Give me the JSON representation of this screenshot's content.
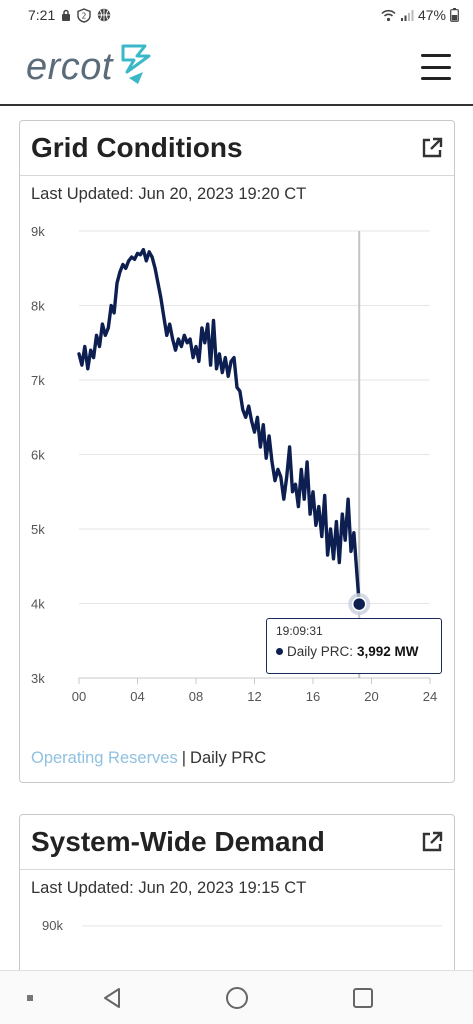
{
  "status_bar": {
    "time": "7:21",
    "battery": "47%"
  },
  "header": {
    "logo_text": "ercot",
    "menu_icon": "hamburger-menu-icon"
  },
  "grid_conditions": {
    "title": "Grid Conditions",
    "last_updated": "Last Updated: Jun 20, 2023 19:20 CT",
    "tooltip": {
      "time": "19:09:31",
      "series": "Daily PRC:",
      "value": "3,992 MW"
    },
    "legend": {
      "inactive": "Operating Reserves",
      "separator": "|",
      "active": "Daily PRC"
    }
  },
  "system_demand": {
    "title": "System-Wide Demand",
    "last_updated": "Last Updated: Jun 20, 2023 19:15 CT",
    "y_top_tick": "90k"
  },
  "chart_data": {
    "type": "line",
    "y_ticks": [
      "9k",
      "8k",
      "7k",
      "6k",
      "5k",
      "4k",
      "3k"
    ],
    "x_ticks": [
      "00",
      "04",
      "08",
      "12",
      "16",
      "20",
      "24"
    ],
    "ylim": [
      3000,
      9000
    ],
    "xlim": [
      0,
      24
    ],
    "crosshair_x": 19.16,
    "highlight": {
      "x": 19.16,
      "y": 3992
    },
    "line_color": "#0d1e50",
    "series": [
      {
        "name": "Daily PRC",
        "x": [
          0,
          0.2,
          0.4,
          0.6,
          0.8,
          1.0,
          1.2,
          1.4,
          1.6,
          1.8,
          2.0,
          2.2,
          2.4,
          2.6,
          2.8,
          3.0,
          3.2,
          3.4,
          3.6,
          3.8,
          4.0,
          4.2,
          4.4,
          4.6,
          4.8,
          5.0,
          5.2,
          5.4,
          5.6,
          5.8,
          6.0,
          6.2,
          6.4,
          6.6,
          6.8,
          7.0,
          7.2,
          7.4,
          7.6,
          7.8,
          8.0,
          8.2,
          8.4,
          8.6,
          8.8,
          9.0,
          9.2,
          9.4,
          9.6,
          9.8,
          10.0,
          10.2,
          10.4,
          10.6,
          10.8,
          11.0,
          11.2,
          11.4,
          11.6,
          11.8,
          12.0,
          12.2,
          12.4,
          12.6,
          12.8,
          13.0,
          13.2,
          13.4,
          13.6,
          13.8,
          14.0,
          14.2,
          14.4,
          14.6,
          14.8,
          15.0,
          15.2,
          15.4,
          15.6,
          15.8,
          16.0,
          16.2,
          16.4,
          16.6,
          16.8,
          17.0,
          17.2,
          17.4,
          17.6,
          17.8,
          18.0,
          18.2,
          18.4,
          18.6,
          18.8,
          19.0,
          19.16
        ],
        "y": [
          7350,
          7200,
          7450,
          7150,
          7400,
          7300,
          7600,
          7450,
          7750,
          7600,
          7700,
          8000,
          7900,
          8300,
          8450,
          8550,
          8500,
          8600,
          8650,
          8620,
          8700,
          8680,
          8750,
          8600,
          8720,
          8650,
          8500,
          8300,
          8100,
          7850,
          7600,
          7750,
          7550,
          7400,
          7550,
          7450,
          7600,
          7500,
          7550,
          7300,
          7450,
          7250,
          7700,
          7500,
          7750,
          7200,
          7800,
          7150,
          7350,
          7100,
          7300,
          7050,
          7250,
          7300,
          6900,
          6850,
          6600,
          6500,
          6650,
          6450,
          6300,
          6500,
          6100,
          6400,
          5950,
          6250,
          5900,
          5650,
          5800,
          5700,
          5400,
          5700,
          6100,
          5500,
          5600,
          5300,
          5800,
          5400,
          5900,
          5200,
          5500,
          5050,
          5300,
          4900,
          5450,
          4650,
          5000,
          4600,
          5100,
          4550,
          5200,
          4850,
          5400,
          4700,
          4950,
          4400,
          3992
        ]
      }
    ]
  }
}
